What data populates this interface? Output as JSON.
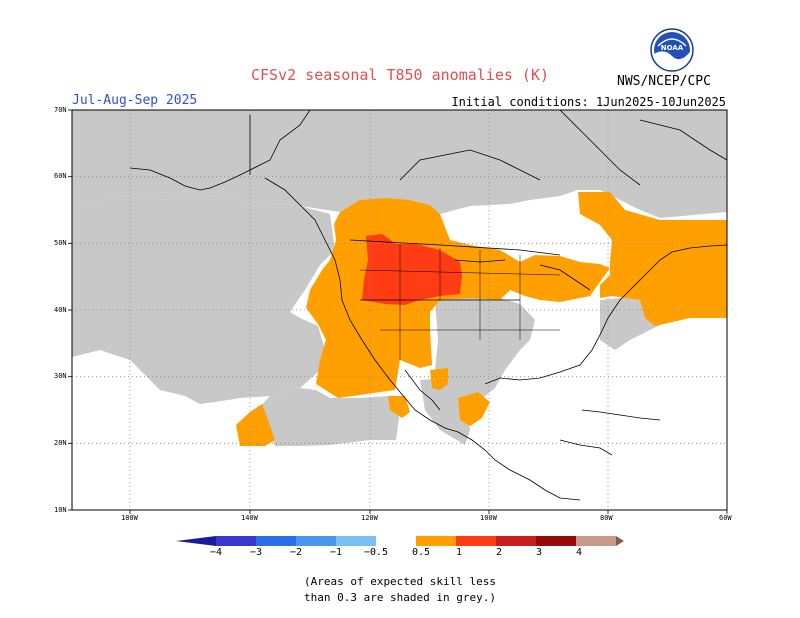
{
  "title": "CFSv2 seasonal T850 anomalies (K)",
  "season": "Jul-Aug-Sep 2025",
  "initial_conditions": "Initial conditions: 1Jun2025-10Jun2025",
  "agency": "NWS/NCEP/CPC",
  "logo_icon": "noaa-logo-icon",
  "map": {
    "lat_range": [
      10,
      70
    ],
    "lon_range": [
      -190,
      -60
    ],
    "lat_labels": [
      "70N",
      "60N",
      "50N",
      "40N",
      "30N",
      "20N",
      "10N"
    ],
    "lon_labels": [
      "180W",
      "140W",
      "120W",
      "100W",
      "80W",
      "60W"
    ],
    "colors": {
      "low_skill_grey": "#c8c8c8",
      "anomaly_0_5_to_1": "#ffa000",
      "anomaly_1_to_2": "#ff3c14",
      "coastline": "#000000",
      "gridline": "#888888"
    }
  },
  "colorbar": {
    "labels": [
      "−4",
      "−3",
      "−2",
      "−1",
      "−0.5",
      "0.5",
      "1",
      "2",
      "3",
      "4"
    ],
    "colors": [
      "#1a1a9a",
      "#3838d0",
      "#2a6ee8",
      "#4a98ee",
      "#78c0f2",
      "#ffffff",
      "#ffa000",
      "#ff3c14",
      "#c81e1e",
      "#960a0a",
      "#c89888",
      "#8a5a48"
    ]
  },
  "note_line1": "(Areas of expected skill less",
  "note_line2": "than 0.3 are shaded in grey.)"
}
